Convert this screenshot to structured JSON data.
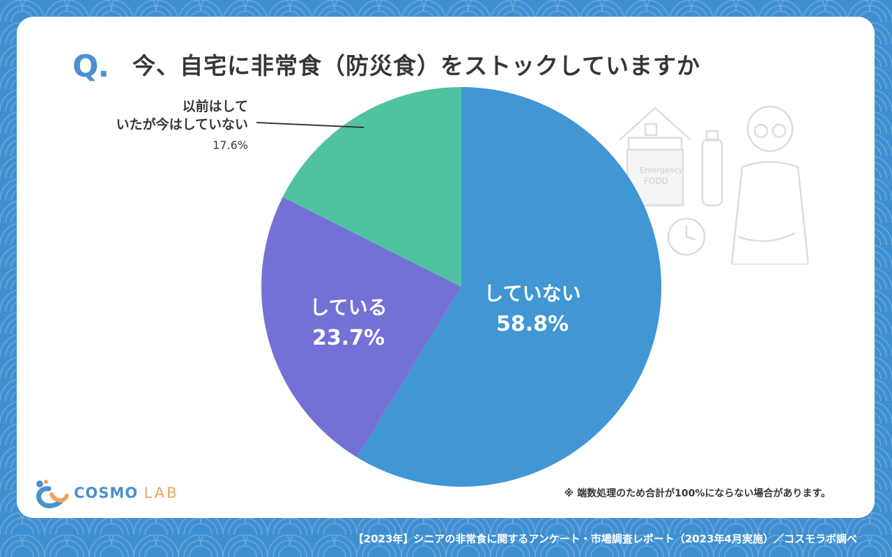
{
  "question": {
    "mark": "Q.",
    "text": "今、自宅に非常食（防災食）をストックしていますか"
  },
  "chart_data": {
    "type": "pie",
    "slices": [
      {
        "label": "していない",
        "value": 58.8,
        "color": "#4196d4"
      },
      {
        "label": "している",
        "value": 23.7,
        "color": "#7371d6"
      },
      {
        "label": "以前はしていたが今はしていない",
        "value": 17.6,
        "color": "#50c2a2"
      }
    ],
    "start_angle": 0,
    "direction": "clockwise"
  },
  "labels": {
    "no": {
      "name": "していない",
      "pct": "58.8%"
    },
    "yes": {
      "name": "している",
      "pct": "23.7%"
    },
    "previous": {
      "line1": "以前はして",
      "line2": "いたが今はしていない",
      "pct": "17.6%"
    }
  },
  "note": "※ 端数処理のため合計が100%にならない場合があります。",
  "logo": {
    "cosmo": "COSMO",
    "lab": "LAB"
  },
  "illustration": {
    "box_line1": "Emergency",
    "box_line2": "FODD"
  },
  "footer": "【2023年】シニアの非常食に関するアンケート・市場調査レポート（2023年4月実施）／コスモラボ調べ",
  "colors": {
    "background": "#3f8fd0",
    "card": "#ffffff",
    "accent": "#4a90cf",
    "text": "#3b3434"
  }
}
